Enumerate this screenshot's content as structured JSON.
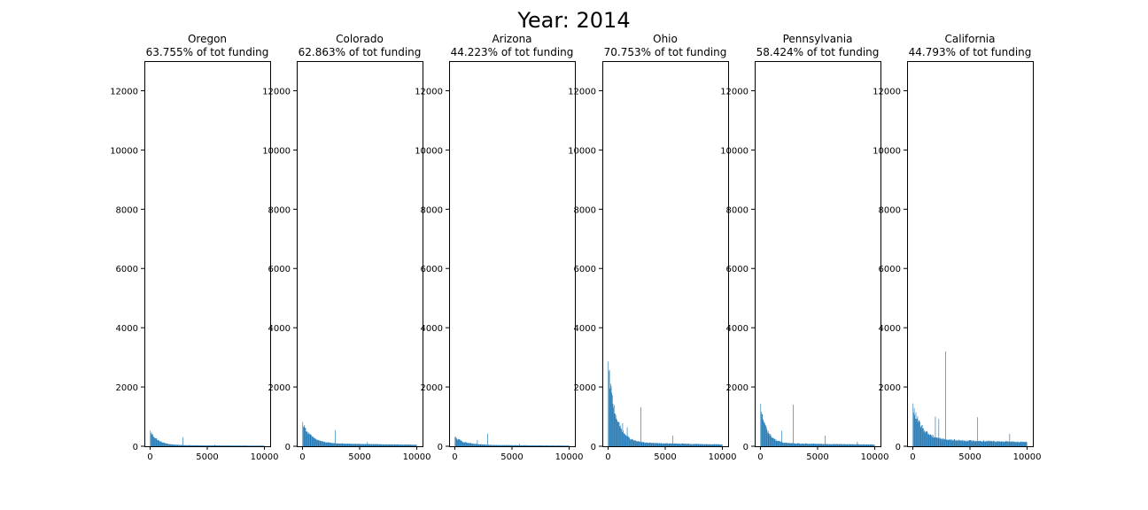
{
  "figure": {
    "suptitle": "Year: 2014"
  },
  "colors": {
    "bar": "#1f77b4",
    "axis": "#000000",
    "background": "#ffffff"
  },
  "chart_data": [
    {
      "type": "bar",
      "title": "Oregon",
      "subtitle": "63.755% of tot funding",
      "xlabel": "",
      "ylabel": "",
      "xlim": [
        -500,
        10500
      ],
      "ylim": [
        0,
        13000
      ],
      "xticks": [
        0,
        5000,
        10000
      ],
      "yticks": [
        0,
        2000,
        4000,
        6000,
        8000,
        10000,
        12000
      ],
      "grid": false,
      "bin_width": 50,
      "profile": {
        "peak": 500,
        "base": 40,
        "decay": 700,
        "tail": 10,
        "noise": 0.12
      },
      "spikes": [
        {
          "x": 2850,
          "y": 310
        },
        {
          "x": 5650,
          "y": 60
        }
      ]
    },
    {
      "type": "bar",
      "title": "Colorado",
      "subtitle": "62.863% of tot funding",
      "xlabel": "",
      "ylabel": "",
      "xlim": [
        -500,
        10500
      ],
      "ylim": [
        0,
        13000
      ],
      "xticks": [
        0,
        5000,
        10000
      ],
      "yticks": [
        0,
        2000,
        4000,
        6000,
        8000,
        10000,
        12000
      ],
      "grid": false,
      "bin_width": 50,
      "profile": {
        "peak": 780,
        "base": 100,
        "decay": 800,
        "tail": 30,
        "noise": 0.1
      },
      "spikes": [
        {
          "x": 2850,
          "y": 550
        },
        {
          "x": 5650,
          "y": 140
        }
      ]
    },
    {
      "type": "bar",
      "title": "Arizona",
      "subtitle": "44.223% of tot funding",
      "xlabel": "",
      "ylabel": "",
      "xlim": [
        -500,
        10500
      ],
      "ylim": [
        0,
        13000
      ],
      "xticks": [
        0,
        5000,
        10000
      ],
      "yticks": [
        0,
        2000,
        4000,
        6000,
        8000,
        10000,
        12000
      ],
      "grid": false,
      "bin_width": 50,
      "profile": {
        "peak": 300,
        "base": 50,
        "decay": 900,
        "tail": 10,
        "noise": 0.15
      },
      "spikes": [
        {
          "x": 2850,
          "y": 430
        },
        {
          "x": 1950,
          "y": 210
        },
        {
          "x": 5650,
          "y": 80
        }
      ]
    },
    {
      "type": "bar",
      "title": "Ohio",
      "subtitle": "70.753% of tot funding",
      "xlabel": "",
      "ylabel": "",
      "xlim": [
        -500,
        10500
      ],
      "ylim": [
        0,
        13000
      ],
      "xticks": [
        0,
        5000,
        10000
      ],
      "yticks": [
        0,
        2000,
        4000,
        6000,
        8000,
        10000,
        12000
      ],
      "grid": false,
      "bin_width": 50,
      "profile": {
        "peak": 2650,
        "base": 130,
        "decay": 700,
        "tail": 30,
        "noise": 0.12
      },
      "spikes": [
        {
          "x": 2850,
          "y": 1320
        },
        {
          "x": 1250,
          "y": 780
        },
        {
          "x": 1650,
          "y": 640
        },
        {
          "x": 5650,
          "y": 360
        }
      ]
    },
    {
      "type": "bar",
      "title": "Pennsylvania",
      "subtitle": "58.424% of tot funding",
      "xlabel": "",
      "ylabel": "",
      "xlim": [
        -500,
        10500
      ],
      "ylim": [
        0,
        13000
      ],
      "xticks": [
        0,
        5000,
        10000
      ],
      "yticks": [
        0,
        2000,
        4000,
        6000,
        8000,
        10000,
        12000
      ],
      "grid": false,
      "bin_width": 50,
      "profile": {
        "peak": 1300,
        "base": 100,
        "decay": 600,
        "tail": 40,
        "noise": 0.14
      },
      "spikes": [
        {
          "x": 2850,
          "y": 1400
        },
        {
          "x": 5650,
          "y": 360
        },
        {
          "x": 1850,
          "y": 520
        },
        {
          "x": 8450,
          "y": 150
        }
      ]
    },
    {
      "type": "bar",
      "title": "California",
      "subtitle": "44.793% of tot funding",
      "xlabel": "",
      "ylabel": "",
      "xlim": [
        -500,
        10500
      ],
      "ylim": [
        0,
        13000
      ],
      "xticks": [
        0,
        5000,
        10000
      ],
      "yticks": [
        0,
        2000,
        4000,
        6000,
        8000,
        10000,
        12000
      ],
      "grid": false,
      "bin_width": 50,
      "profile": {
        "peak": 1300,
        "base": 220,
        "decay": 900,
        "tail": 120,
        "noise": 0.14
      },
      "spikes": [
        {
          "x": 2850,
          "y": 3200
        },
        {
          "x": 5650,
          "y": 980
        },
        {
          "x": 1950,
          "y": 1000
        },
        {
          "x": 2250,
          "y": 920
        },
        {
          "x": 8450,
          "y": 420
        }
      ]
    }
  ]
}
